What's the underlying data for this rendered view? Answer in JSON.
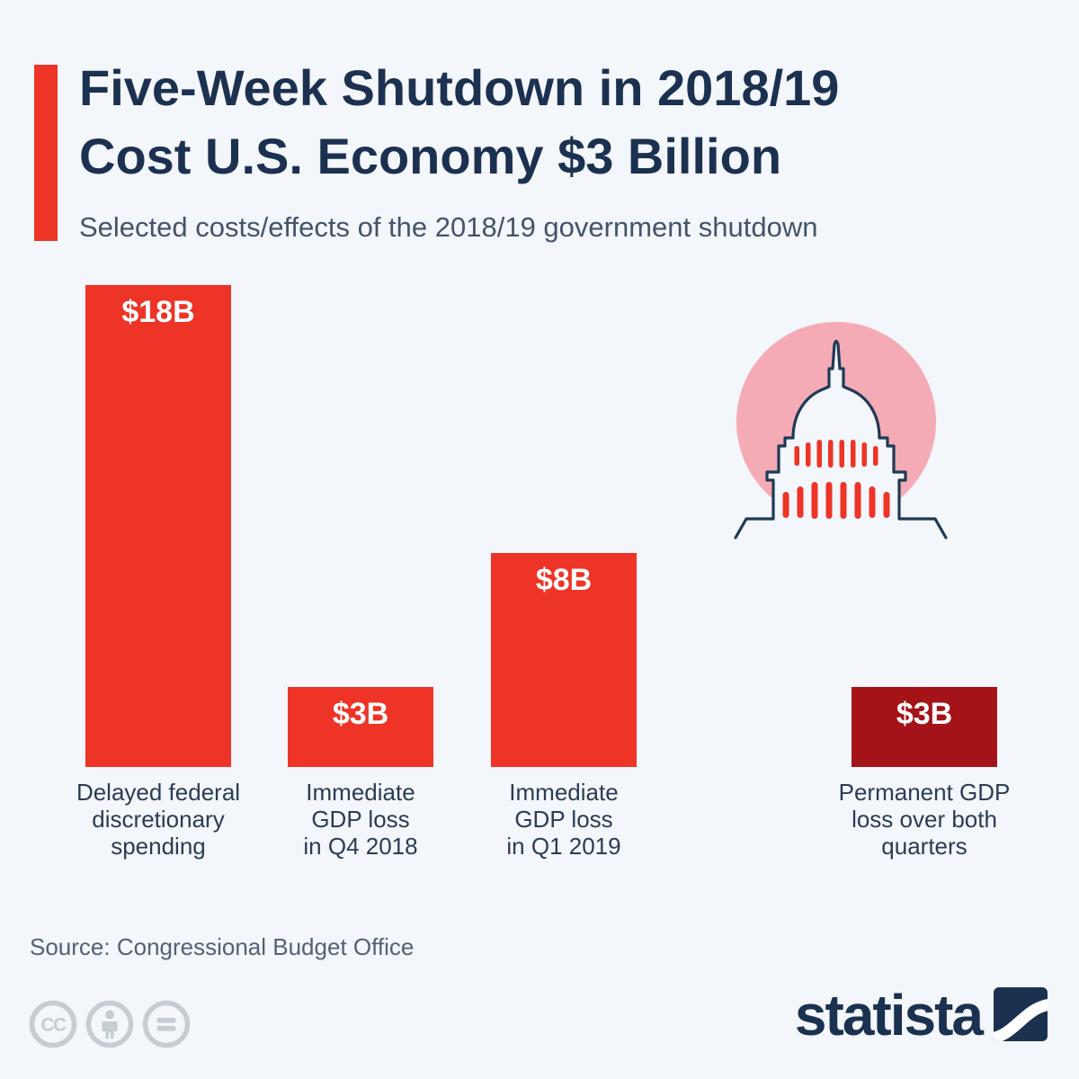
{
  "header": {
    "title_line1": "Five-Week Shutdown in 2018/19",
    "title_line2": "Cost U.S. Economy $3 Billion",
    "subtitle": "Selected costs/effects of the 2018/19 government shutdown"
  },
  "chart_data": {
    "type": "bar",
    "title": "Selected costs/effects of the 2018/19 government shutdown",
    "unit": "billions of USD",
    "categories": [
      "Delayed federal\ndiscretionary\nspending",
      "Immediate\nGDP loss\nin Q4 2018",
      "Immediate\nGDP loss\nin Q1 2019",
      "Permanent GDP\nloss over both\nquarters"
    ],
    "values": [
      18,
      3,
      8,
      3
    ],
    "value_labels": [
      "$18B",
      "$3B",
      "$8B",
      "$3B"
    ],
    "bar_colors": [
      "#ee3427",
      "#ee3427",
      "#ee3427",
      "#a31318"
    ],
    "ylim": [
      0,
      18
    ],
    "gridlines": false,
    "axes_shown": false,
    "value_label_position": "inside-top"
  },
  "icons": {
    "capitol": "us-capitol-building",
    "license": [
      "creative-commons",
      "attribution",
      "no-derivatives"
    ]
  },
  "footer": {
    "source": "Source: Congressional Budget Office",
    "brand": "statista"
  },
  "colors": {
    "background": "#f3f6fa",
    "accent_red": "#ee3427",
    "dark_red": "#a31318",
    "title_navy": "#1c3150",
    "subtitle_gray": "#44546a",
    "label_navy": "#2b3c55",
    "capitol_pink": "#f5abb5",
    "capitol_outline": "#1f3a56",
    "license_gray": "#c5ccd4"
  }
}
